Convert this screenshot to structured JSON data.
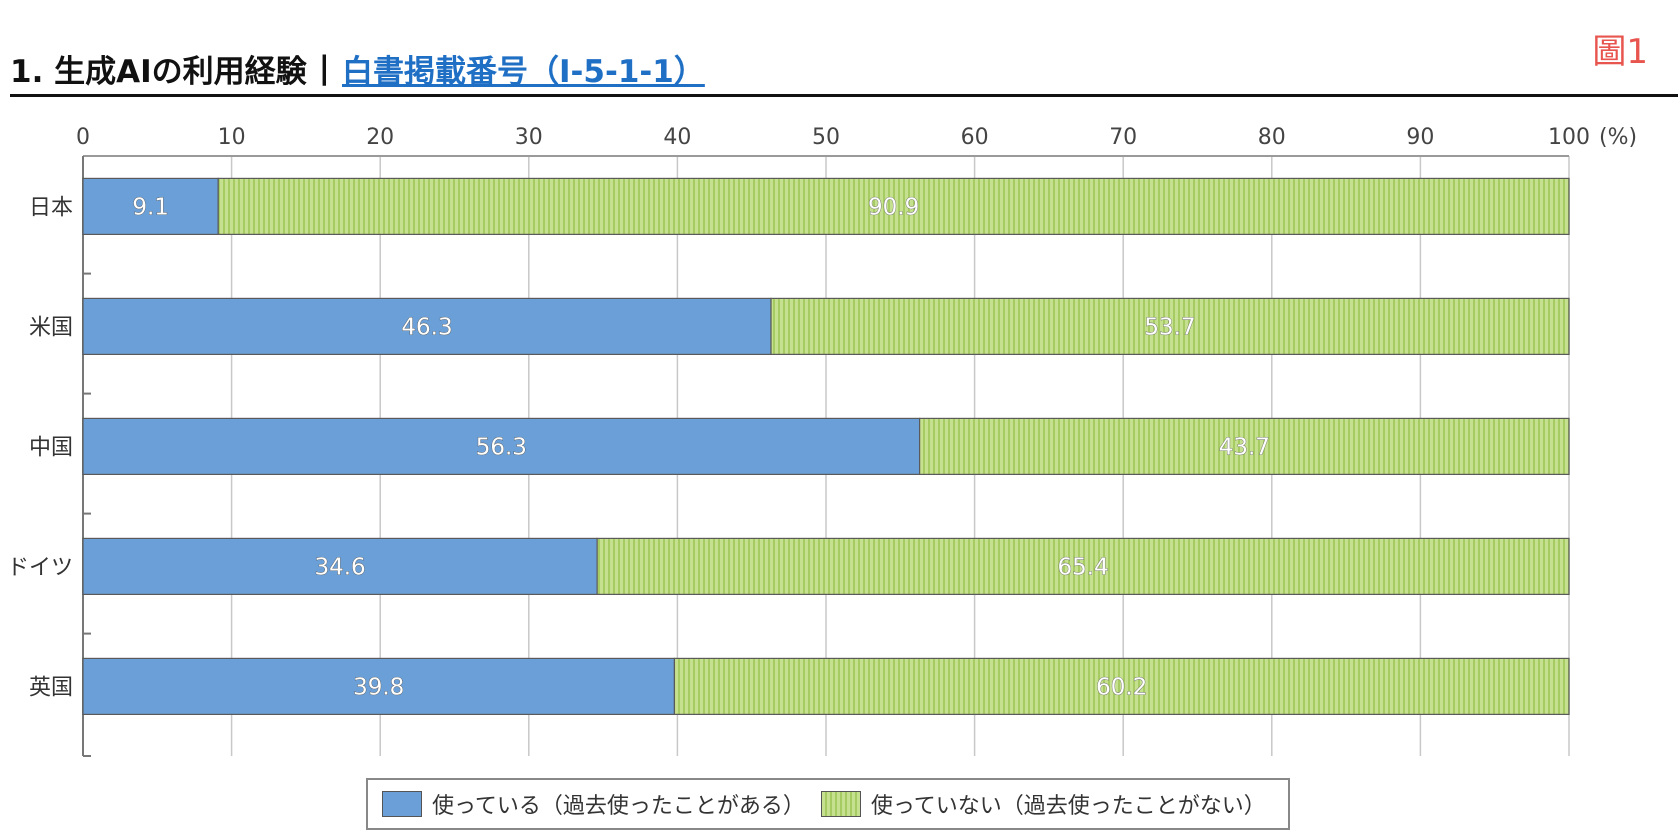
{
  "header": {
    "title": "1. 生成AIの利用経験",
    "separator": "|",
    "link_text": "白書掲載番号（Ⅰ-5-1-1）",
    "figure_label": "圖1"
  },
  "colors": {
    "used": "#6b9fd8",
    "not_used": "#c5e08e",
    "not_used_stripe": "#a6cb62",
    "figure_label": "#e8554e",
    "link": "#1f6fc5"
  },
  "chart_data": {
    "type": "bar",
    "orientation": "horizontal",
    "stacked": true,
    "title": "",
    "xlabel": "",
    "ylabel": "",
    "unit_label": "(%)",
    "xlim": [
      0,
      100
    ],
    "xticks": [
      0,
      10,
      20,
      30,
      40,
      50,
      60,
      70,
      80,
      90,
      100
    ],
    "grid": true,
    "legend_position": "bottom",
    "categories": [
      "日本",
      "米国",
      "中国",
      "ドイツ",
      "英国"
    ],
    "series": [
      {
        "name": "使っている（過去使ったことがある）",
        "values": [
          9.1,
          46.3,
          56.3,
          34.6,
          39.8
        ]
      },
      {
        "name": "使っていない（過去使ったことがない）",
        "values": [
          90.9,
          53.7,
          43.7,
          65.4,
          60.2
        ]
      }
    ]
  }
}
